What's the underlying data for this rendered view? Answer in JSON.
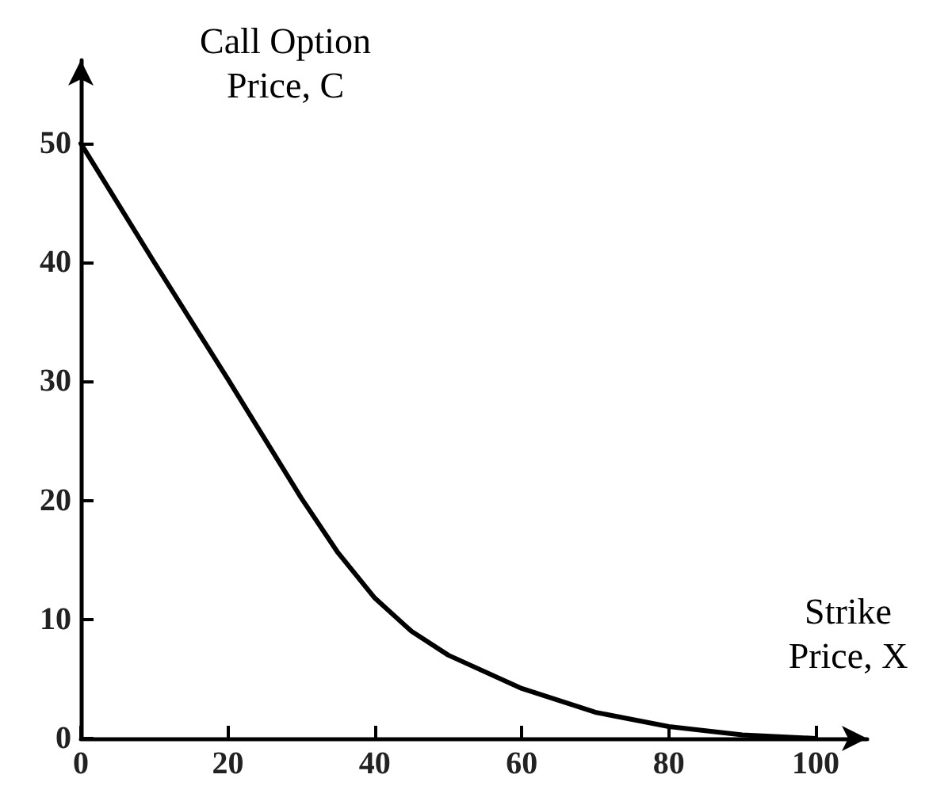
{
  "chart_data": {
    "type": "line",
    "xlabel": "Strike\nPrice, X",
    "ylabel": "Call Option\nPrice, C",
    "x": [
      0,
      10,
      20,
      30,
      35,
      40,
      45,
      50,
      60,
      70,
      80,
      90,
      100
    ],
    "series": [
      {
        "color": "#000000",
        "values": [
          50,
          40,
          30.2,
          20.2,
          15.6,
          11.8,
          9,
          7,
          4.2,
          2.2,
          1.0,
          0.3,
          0
        ]
      }
    ],
    "xlim": [
      0,
      107
    ],
    "xticks": [
      0,
      20,
      40,
      60,
      80,
      100
    ],
    "ylim": [
      0,
      57
    ],
    "yticks": [
      0,
      10,
      20,
      30,
      40,
      50
    ],
    "grid": false,
    "marker": "none",
    "line_style": "solid"
  }
}
